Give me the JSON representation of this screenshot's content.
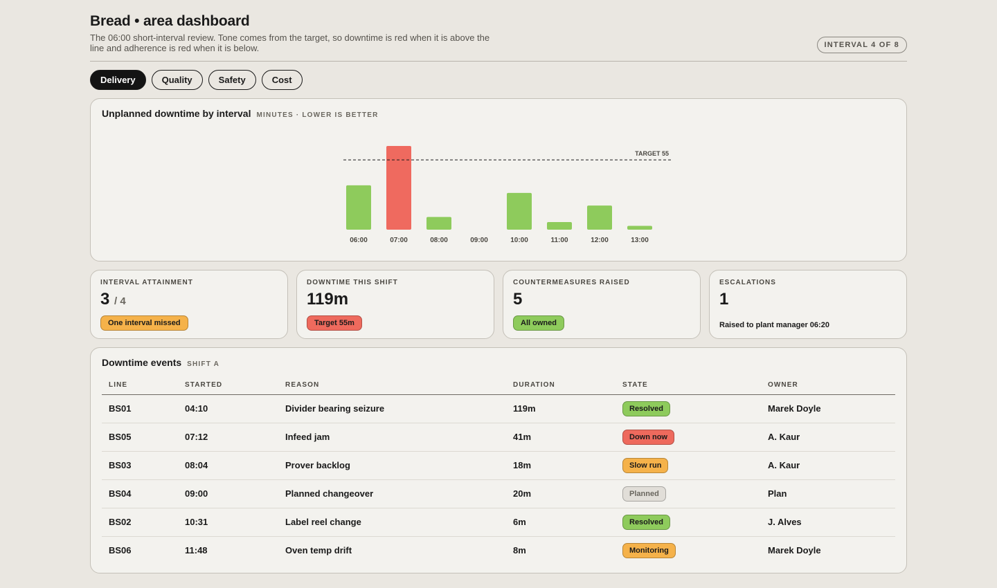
{
  "header": {
    "title": "Bread • area dashboard",
    "subtitle": "The 06:00 short-interval review. Tone comes from the target, so downtime is red when it is above the line and adherence is red when it is below.",
    "interval_pill": "INTERVAL 4 OF 8"
  },
  "tabs": [
    {
      "label": "Delivery",
      "active": true
    },
    {
      "label": "Quality",
      "active": false
    },
    {
      "label": "Safety",
      "active": false
    },
    {
      "label": "Cost",
      "active": false
    }
  ],
  "chart_card": {
    "title": "Unplanned downtime by interval",
    "subtitle": "MINUTES · LOWER IS BETTER"
  },
  "chart_data": {
    "type": "bar",
    "categories": [
      "06:00",
      "07:00",
      "08:00",
      "09:00",
      "10:00",
      "11:00",
      "12:00",
      "13:00"
    ],
    "values": [
      35,
      66,
      10,
      0,
      29,
      6,
      19,
      3
    ],
    "target": 55,
    "target_label": "TARGET 55",
    "ylim": [
      0,
      66
    ],
    "colors": {
      "under_target": "#8ecb5c",
      "over_target": "#ef6a5f"
    }
  },
  "kpis": [
    {
      "label": "INTERVAL ATTAINMENT",
      "value": "3",
      "value_suffix": "/ 4",
      "badge": "One interval missed",
      "badge_color": "#f5b24a"
    },
    {
      "label": "DOWNTIME THIS SHIFT",
      "value": "119m",
      "badge": "Target 55m",
      "badge_color": "#ee6a5d"
    },
    {
      "label": "COUNTERMEASURES RAISED",
      "value": "5",
      "badge": "All owned",
      "badge_color": "#8ecb5c"
    },
    {
      "label": "ESCALATIONS",
      "value": "1",
      "note": "Raised to plant manager 06:20"
    }
  ],
  "events": {
    "title": "Downtime events",
    "subtitle": "SHIFT A",
    "columns": [
      "LINE",
      "STARTED",
      "REASON",
      "DURATION",
      "STATE",
      "OWNER"
    ],
    "rows": [
      {
        "line": "BS01",
        "started": "04:10",
        "reason": "Divider bearing seizure",
        "duration": "119m",
        "state": "Resolved",
        "state_tone": "green",
        "owner": "Marek Doyle"
      },
      {
        "line": "BS05",
        "started": "07:12",
        "reason": "Infeed jam",
        "duration": "41m",
        "state": "Down now",
        "state_tone": "red",
        "owner": "A. Kaur"
      },
      {
        "line": "BS03",
        "started": "08:04",
        "reason": "Prover backlog",
        "duration": "18m",
        "state": "Slow run",
        "state_tone": "amber",
        "owner": "A. Kaur"
      },
      {
        "line": "BS04",
        "started": "09:00",
        "reason": "Planned changeover",
        "duration": "20m",
        "state": "Planned",
        "state_tone": "grey",
        "owner": "Plan"
      },
      {
        "line": "BS02",
        "started": "10:31",
        "reason": "Label reel change",
        "duration": "6m",
        "state": "Resolved",
        "state_tone": "green",
        "owner": "J. Alves"
      },
      {
        "line": "BS06",
        "started": "11:48",
        "reason": "Oven temp drift",
        "duration": "8m",
        "state": "Monitoring",
        "state_tone": "amber",
        "owner": "Marek Doyle"
      }
    ]
  }
}
